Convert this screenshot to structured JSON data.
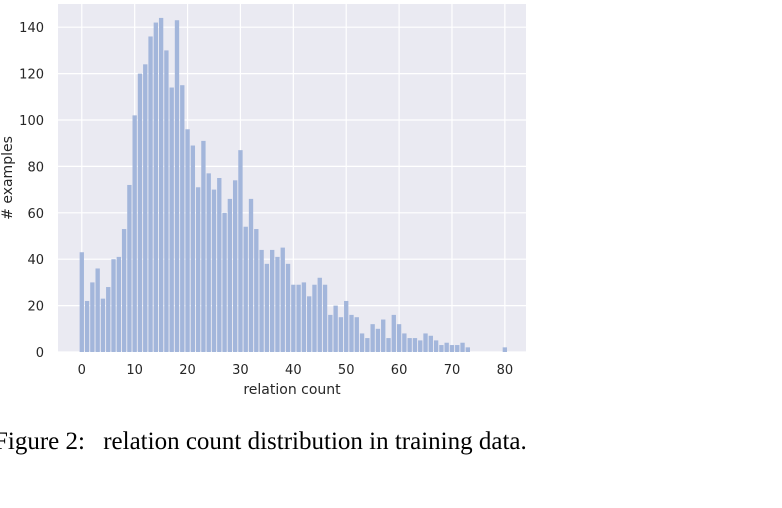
{
  "chart_data": {
    "type": "bar",
    "xlabel": "relation count",
    "ylabel": "# examples",
    "xlim": [
      -4.5,
      84
    ],
    "ylim": [
      0,
      150
    ],
    "xticks": [
      0,
      10,
      20,
      30,
      40,
      50,
      60,
      70,
      80
    ],
    "yticks": [
      0,
      20,
      40,
      60,
      80,
      100,
      120,
      140
    ],
    "grid": true,
    "bin_width": 0.82,
    "bin_spacing": 1,
    "bins": [
      {
        "x": 0,
        "y": 43
      },
      {
        "x": 1,
        "y": 22
      },
      {
        "x": 2,
        "y": 30
      },
      {
        "x": 3,
        "y": 36
      },
      {
        "x": 4,
        "y": 23
      },
      {
        "x": 5,
        "y": 28
      },
      {
        "x": 6,
        "y": 40
      },
      {
        "x": 7,
        "y": 41
      },
      {
        "x": 8,
        "y": 53
      },
      {
        "x": 9,
        "y": 72
      },
      {
        "x": 10,
        "y": 102
      },
      {
        "x": 11,
        "y": 120
      },
      {
        "x": 12,
        "y": 124
      },
      {
        "x": 13,
        "y": 136
      },
      {
        "x": 14,
        "y": 142
      },
      {
        "x": 15,
        "y": 144
      },
      {
        "x": 16,
        "y": 130
      },
      {
        "x": 17,
        "y": 114
      },
      {
        "x": 18,
        "y": 143
      },
      {
        "x": 19,
        "y": 115
      },
      {
        "x": 20,
        "y": 96
      },
      {
        "x": 21,
        "y": 89
      },
      {
        "x": 22,
        "y": 71
      },
      {
        "x": 23,
        "y": 91
      },
      {
        "x": 24,
        "y": 77
      },
      {
        "x": 25,
        "y": 70
      },
      {
        "x": 26,
        "y": 75
      },
      {
        "x": 27,
        "y": 60
      },
      {
        "x": 28,
        "y": 66
      },
      {
        "x": 29,
        "y": 74
      },
      {
        "x": 30,
        "y": 87
      },
      {
        "x": 31,
        "y": 54
      },
      {
        "x": 32,
        "y": 66
      },
      {
        "x": 33,
        "y": 53
      },
      {
        "x": 34,
        "y": 44
      },
      {
        "x": 35,
        "y": 38
      },
      {
        "x": 36,
        "y": 44
      },
      {
        "x": 37,
        "y": 41
      },
      {
        "x": 38,
        "y": 45
      },
      {
        "x": 39,
        "y": 38
      },
      {
        "x": 40,
        "y": 29
      },
      {
        "x": 41,
        "y": 29
      },
      {
        "x": 42,
        "y": 30
      },
      {
        "x": 43,
        "y": 24
      },
      {
        "x": 44,
        "y": 29
      },
      {
        "x": 45,
        "y": 32
      },
      {
        "x": 46,
        "y": 29
      },
      {
        "x": 47,
        "y": 16
      },
      {
        "x": 48,
        "y": 20
      },
      {
        "x": 49,
        "y": 15
      },
      {
        "x": 50,
        "y": 22
      },
      {
        "x": 51,
        "y": 16
      },
      {
        "x": 52,
        "y": 15
      },
      {
        "x": 53,
        "y": 8
      },
      {
        "x": 54,
        "y": 6
      },
      {
        "x": 55,
        "y": 12
      },
      {
        "x": 56,
        "y": 10
      },
      {
        "x": 57,
        "y": 14
      },
      {
        "x": 58,
        "y": 6
      },
      {
        "x": 59,
        "y": 16
      },
      {
        "x": 60,
        "y": 12
      },
      {
        "x": 61,
        "y": 8
      },
      {
        "x": 62,
        "y": 6
      },
      {
        "x": 63,
        "y": 6
      },
      {
        "x": 64,
        "y": 5
      },
      {
        "x": 65,
        "y": 8
      },
      {
        "x": 66,
        "y": 7
      },
      {
        "x": 67,
        "y": 5
      },
      {
        "x": 68,
        "y": 3
      },
      {
        "x": 69,
        "y": 4
      },
      {
        "x": 70,
        "y": 3
      },
      {
        "x": 71,
        "y": 3
      },
      {
        "x": 72,
        "y": 4
      },
      {
        "x": 73,
        "y": 2
      },
      {
        "x": 80,
        "y": 2
      }
    ],
    "colors": {
      "bar": "#a3b6db",
      "background": "#eaeaf2",
      "grid": "#ffffff"
    }
  },
  "caption": {
    "label": "Figure 2:",
    "text": "relation count distribution in training data."
  }
}
